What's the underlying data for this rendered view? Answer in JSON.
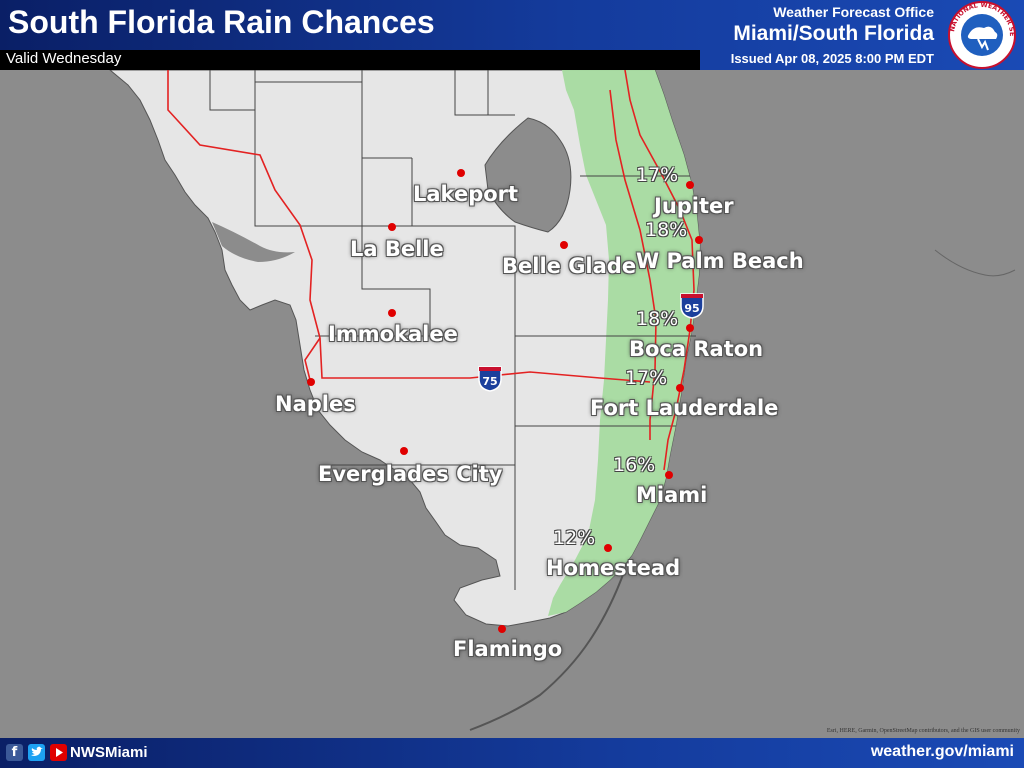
{
  "header": {
    "title": "South Florida Rain Chances",
    "valid": "Valid Wednesday",
    "office_label": "Weather Forecast Office",
    "office_name": "Miami/South Florida",
    "issued": "Issued Apr 08, 2025 8:00 PM EDT",
    "logo_text": "NATIONAL WEATHER SERVICE"
  },
  "map": {
    "colors": {
      "land": "#e6e6e6",
      "water": "#8c8c8c",
      "rain_zone": "#a6dba0",
      "roads": "#e32222",
      "city_dot": "#e00000"
    },
    "highway_shields": [
      "75",
      "95"
    ],
    "cities": [
      {
        "name": "Lakeport"
      },
      {
        "name": "La Belle"
      },
      {
        "name": "Belle Glade"
      },
      {
        "name": "Immokalee"
      },
      {
        "name": "Naples"
      },
      {
        "name": "Everglades City"
      },
      {
        "name": "Jupiter",
        "rain": "17%"
      },
      {
        "name": "W Palm Beach",
        "rain": "18%"
      },
      {
        "name": "Boca Raton",
        "rain": "18%"
      },
      {
        "name": "Fort Lauderdale",
        "rain": "17%"
      },
      {
        "name": "Miami",
        "rain": "16%"
      },
      {
        "name": "Homestead",
        "rain": "12%"
      },
      {
        "name": "Flamingo"
      }
    ],
    "attribution": "Esri, HERE, Garmin, OpenStreetMap contributors, and the GIS user community"
  },
  "footer": {
    "handle": "NWSMiami",
    "site": "weather.gov/miami",
    "icons": [
      "facebook-icon",
      "twitter-icon",
      "youtube-icon"
    ]
  }
}
